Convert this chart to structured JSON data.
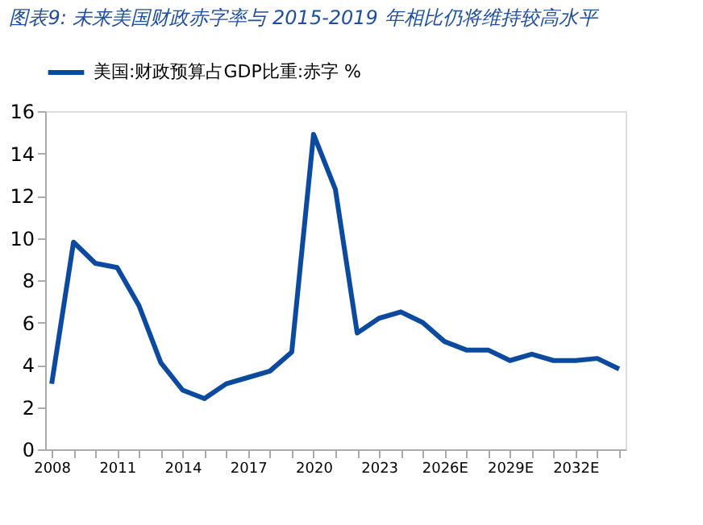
{
  "chart_data": {
    "type": "line",
    "title": "图表9:  未来美国财政赤字率与 2015-2019 年相比仍将维持较高水平",
    "categories": [
      "2008",
      null,
      null,
      "2011",
      null,
      null,
      "2014",
      null,
      null,
      "2017",
      null,
      null,
      "2020",
      null,
      null,
      "2023",
      null,
      null,
      "2026E",
      null,
      null,
      "2029E",
      null,
      null,
      "2032E",
      null,
      null
    ],
    "series": [
      {
        "name": "美国:财政预算占GDP比重:赤字 %",
        "color": "#0b4a9e",
        "values": [
          3.1,
          9.8,
          8.8,
          8.6,
          6.8,
          4.1,
          2.8,
          2.4,
          3.1,
          3.4,
          3.7,
          4.6,
          14.9,
          12.3,
          5.5,
          6.2,
          6.5,
          6.0,
          5.1,
          4.7,
          4.7,
          4.2,
          4.5,
          4.2,
          4.2,
          4.3,
          3.8
        ]
      }
    ],
    "ylim": [
      0,
      16
    ],
    "yticks": [
      0,
      2,
      4,
      6,
      8,
      10,
      12,
      14,
      16
    ],
    "grid": false,
    "legend": "top",
    "marker": "none",
    "line_style": "solid"
  }
}
